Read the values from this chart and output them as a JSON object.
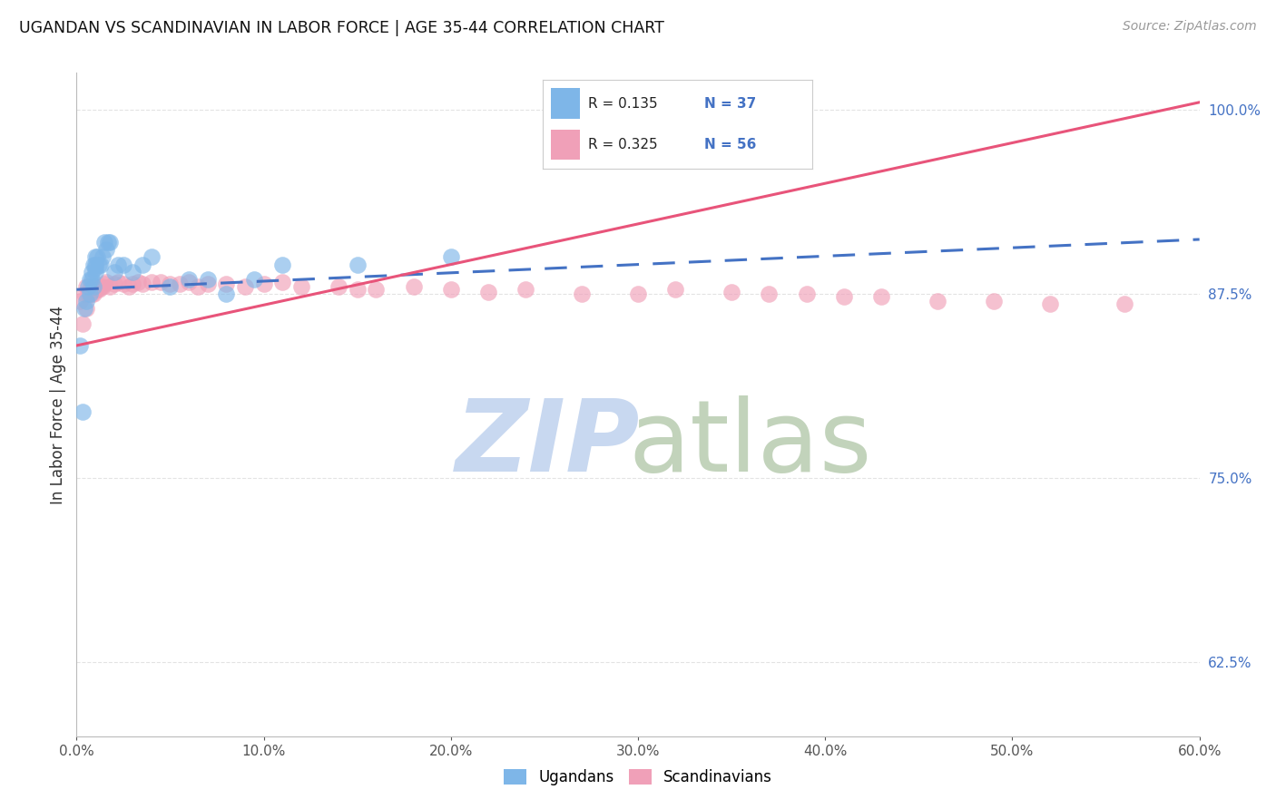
{
  "title": "UGANDAN VS SCANDINAVIAN IN LABOR FORCE | AGE 35-44 CORRELATION CHART",
  "source": "Source: ZipAtlas.com",
  "ylabel": "In Labor Force | Age 35-44",
  "legend_labels": [
    "Ugandans",
    "Scandinavians"
  ],
  "r_ugandan": 0.135,
  "n_ugandan": 37,
  "r_scandinavian": 0.325,
  "n_scandinavian": 56,
  "xmin": 0.0,
  "xmax": 0.6,
  "ymin": 0.575,
  "ymax": 1.025,
  "right_yticks": [
    0.625,
    0.75,
    0.875,
    1.0
  ],
  "right_yticklabels": [
    "62.5%",
    "75.0%",
    "87.5%",
    "100.0%"
  ],
  "ugandan_x": [
    0.002,
    0.003,
    0.004,
    0.005,
    0.006,
    0.007,
    0.007,
    0.008,
    0.008,
    0.009,
    0.009,
    0.01,
    0.01,
    0.01,
    0.01,
    0.011,
    0.012,
    0.013,
    0.014,
    0.015,
    0.016,
    0.017,
    0.018,
    0.02,
    0.022,
    0.025,
    0.03,
    0.035,
    0.04,
    0.05,
    0.06,
    0.07,
    0.08,
    0.095,
    0.11,
    0.15,
    0.2
  ],
  "ugandan_y": [
    0.84,
    0.795,
    0.865,
    0.87,
    0.88,
    0.875,
    0.885,
    0.885,
    0.89,
    0.88,
    0.895,
    0.89,
    0.893,
    0.895,
    0.9,
    0.9,
    0.895,
    0.895,
    0.9,
    0.91,
    0.905,
    0.91,
    0.91,
    0.89,
    0.895,
    0.895,
    0.89,
    0.895,
    0.9,
    0.88,
    0.885,
    0.885,
    0.875,
    0.885,
    0.895,
    0.895,
    0.9
  ],
  "scandinavian_x": [
    0.002,
    0.003,
    0.004,
    0.005,
    0.005,
    0.006,
    0.007,
    0.008,
    0.009,
    0.01,
    0.01,
    0.011,
    0.012,
    0.013,
    0.014,
    0.015,
    0.016,
    0.018,
    0.02,
    0.022,
    0.025,
    0.028,
    0.03,
    0.033,
    0.035,
    0.04,
    0.045,
    0.05,
    0.055,
    0.06,
    0.065,
    0.07,
    0.08,
    0.09,
    0.1,
    0.11,
    0.12,
    0.14,
    0.15,
    0.16,
    0.18,
    0.2,
    0.22,
    0.24,
    0.27,
    0.3,
    0.32,
    0.35,
    0.37,
    0.39,
    0.41,
    0.43,
    0.46,
    0.49,
    0.52,
    0.56
  ],
  "scandinavian_y": [
    0.87,
    0.855,
    0.875,
    0.865,
    0.88,
    0.875,
    0.878,
    0.875,
    0.875,
    0.878,
    0.88,
    0.878,
    0.878,
    0.88,
    0.88,
    0.882,
    0.883,
    0.88,
    0.882,
    0.883,
    0.882,
    0.88,
    0.882,
    0.883,
    0.882,
    0.883,
    0.883,
    0.882,
    0.882,
    0.883,
    0.88,
    0.882,
    0.882,
    0.88,
    0.882,
    0.883,
    0.88,
    0.88,
    0.878,
    0.878,
    0.88,
    0.878,
    0.876,
    0.878,
    0.875,
    0.875,
    0.878,
    0.876,
    0.875,
    0.875,
    0.873,
    0.873,
    0.87,
    0.87,
    0.868,
    0.868
  ],
  "ugandan_line_x0": 0.0,
  "ugandan_line_y0": 0.878,
  "ugandan_line_x1": 0.6,
  "ugandan_line_y1": 0.912,
  "scandinavian_line_x0": 0.0,
  "scandinavian_line_y0": 0.84,
  "scandinavian_line_x1": 0.6,
  "scandinavian_line_y1": 1.005,
  "blue_color": "#7EB6E8",
  "pink_color": "#F0A0B8",
  "blue_line_color": "#4472C4",
  "pink_line_color": "#E8547A",
  "blue_text_color": "#4472C4",
  "grid_color": "#DDDDDD",
  "background_color": "#FFFFFF"
}
